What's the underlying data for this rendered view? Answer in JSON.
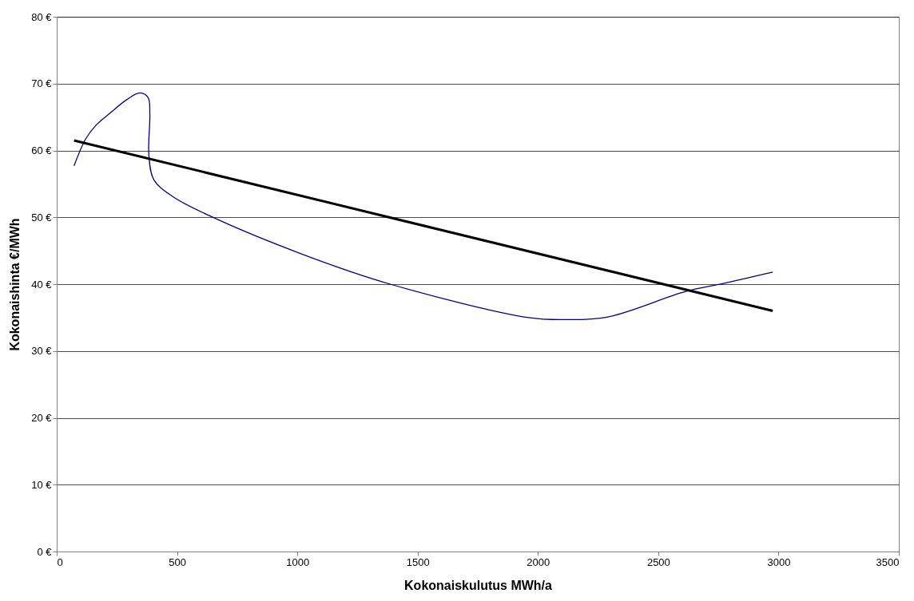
{
  "chart_data": {
    "type": "line",
    "xlabel": "Kokonaiskulutus MWh/a",
    "ylabel": "Kokonaishinta €/MWh",
    "xlim": [
      0,
      3500
    ],
    "xticks": [
      0,
      500,
      1000,
      1500,
      2000,
      2500,
      3000,
      3500
    ],
    "ylim": [
      0,
      80
    ],
    "yticks": [
      {
        "value": 0,
        "label": "0 €"
      },
      {
        "value": 10,
        "label": "10 €"
      },
      {
        "value": 20,
        "label": "20 €"
      },
      {
        "value": 30,
        "label": "30 €"
      },
      {
        "value": 40,
        "label": "40 €"
      },
      {
        "value": 50,
        "label": "50 €"
      },
      {
        "value": 60,
        "label": "60 €"
      },
      {
        "value": 70,
        "label": "70 €"
      },
      {
        "value": 80,
        "label": "80 €"
      }
    ],
    "grid": "y",
    "marker": "none",
    "line_style": "solid",
    "series": [
      {
        "color": "#000080",
        "x": [
          72,
          120,
          164,
          222,
          291,
          346,
          380,
          387,
          383,
          404,
          482,
          643,
          1019,
          1386,
          1960,
          2111,
          2292,
          2614,
          2771,
          2976
        ],
        "values": [
          57.7,
          61.7,
          63.8,
          65.6,
          67.6,
          68.6,
          67.9,
          65.4,
          59.3,
          55.6,
          53.1,
          50.1,
          44.5,
          40.0,
          35.0,
          34.7,
          35.1,
          38.9,
          40.1,
          41.8
        ]
      },
      {
        "color": "#000000",
        "x": [
          72,
          2976
        ],
        "values": [
          61.5,
          36.0
        ]
      }
    ]
  }
}
